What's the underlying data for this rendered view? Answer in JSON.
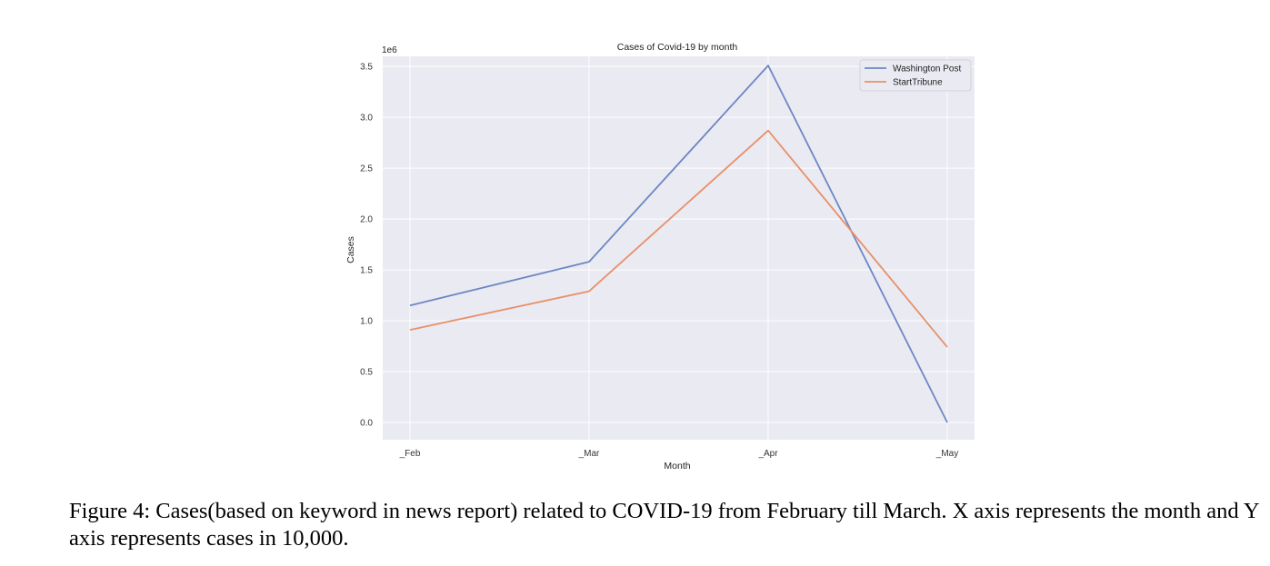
{
  "chart_data": {
    "type": "line",
    "title": "Cases of Covid-19 by month",
    "xlabel": "Month",
    "ylabel": "Cases",
    "y_offset_text": "1e6",
    "categories": [
      "_Feb",
      "_Mar",
      "_Apr",
      "_May"
    ],
    "ylim": [
      -0.17,
      3.6
    ],
    "yticks": [
      0.0,
      0.5,
      1.0,
      1.5,
      2.0,
      2.5,
      3.0,
      3.5
    ],
    "ytick_labels": [
      "0.0",
      "0.5",
      "1.0",
      "1.5",
      "2.0",
      "2.5",
      "3.0",
      "3.5"
    ],
    "grid": true,
    "legend_position": "upper right",
    "series": [
      {
        "name": "Washington Post",
        "color": "#6d87c4",
        "values": [
          1.15,
          1.58,
          3.51,
          0.0
        ]
      },
      {
        "name": "StartTribune",
        "color": "#e8906a",
        "values": [
          0.91,
          1.29,
          2.87,
          0.74
        ]
      }
    ],
    "plot_background": "#eaeaf2",
    "grid_color": "#ffffff"
  },
  "caption": "Figure 4: Cases(based on keyword in news report) related to COVID-19 from February till March. X axis represents the month and Y axis represents cases in 10,000."
}
